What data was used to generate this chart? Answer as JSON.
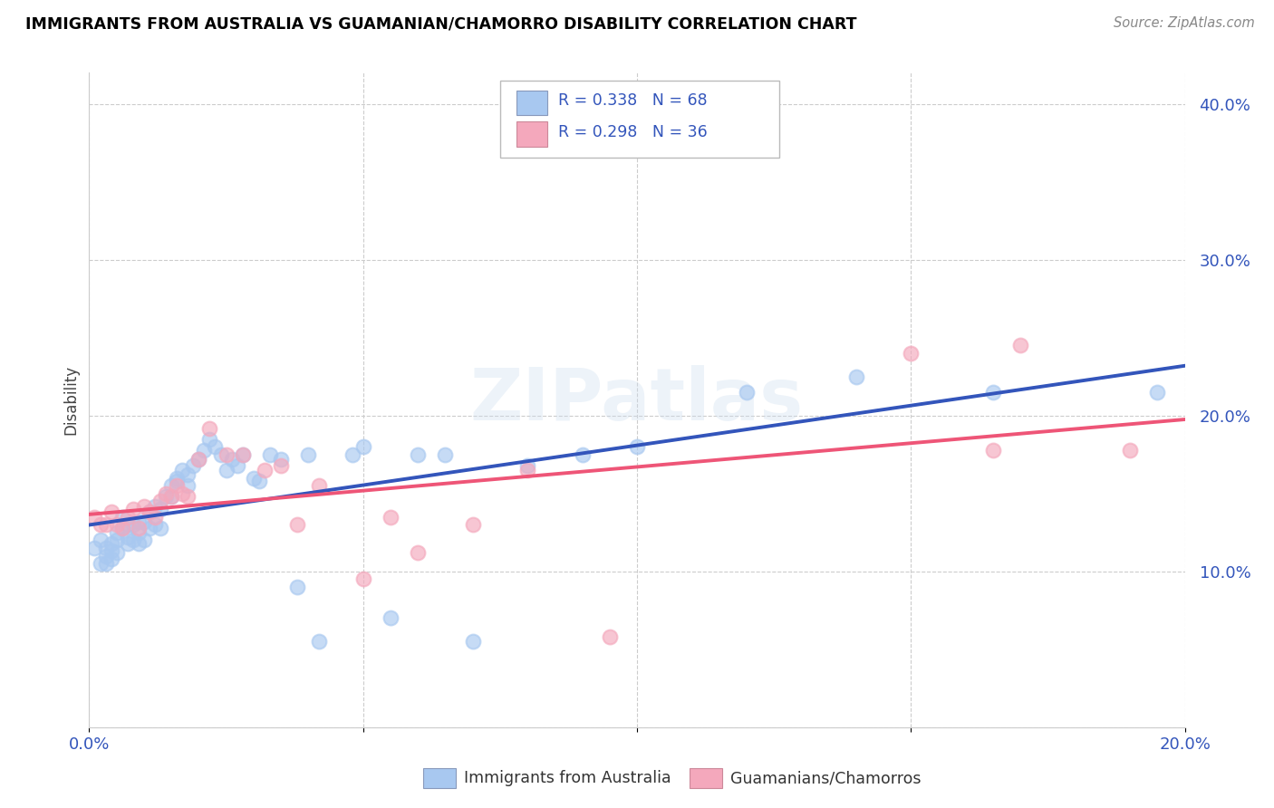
{
  "title": "IMMIGRANTS FROM AUSTRALIA VS GUAMANIAN/CHAMORRO DISABILITY CORRELATION CHART",
  "source": "Source: ZipAtlas.com",
  "ylabel": "Disability",
  "x_min": 0.0,
  "x_max": 0.2,
  "y_min": 0.0,
  "y_max": 0.42,
  "r_blue": 0.338,
  "n_blue": 68,
  "r_pink": 0.298,
  "n_pink": 36,
  "blue_color": "#A8C8F0",
  "pink_color": "#F4A8BC",
  "line_blue": "#3355BB",
  "line_pink": "#EE5577",
  "line_dashed_color": "#AAAAAA",
  "legend_text_color": "#3355BB",
  "tick_color": "#3355BB",
  "grid_color": "#CCCCCC",
  "blue_scatter_x": [
    0.001,
    0.002,
    0.002,
    0.003,
    0.003,
    0.003,
    0.004,
    0.004,
    0.004,
    0.005,
    0.005,
    0.005,
    0.006,
    0.006,
    0.007,
    0.007,
    0.007,
    0.008,
    0.008,
    0.009,
    0.009,
    0.009,
    0.01,
    0.01,
    0.011,
    0.011,
    0.012,
    0.012,
    0.013,
    0.013,
    0.014,
    0.015,
    0.015,
    0.016,
    0.016,
    0.017,
    0.018,
    0.018,
    0.019,
    0.02,
    0.021,
    0.022,
    0.023,
    0.024,
    0.025,
    0.026,
    0.027,
    0.028,
    0.03,
    0.031,
    0.033,
    0.035,
    0.038,
    0.04,
    0.042,
    0.048,
    0.05,
    0.055,
    0.06,
    0.065,
    0.07,
    0.08,
    0.09,
    0.1,
    0.12,
    0.14,
    0.165,
    0.195
  ],
  "blue_scatter_y": [
    0.115,
    0.12,
    0.105,
    0.115,
    0.11,
    0.105,
    0.118,
    0.113,
    0.108,
    0.125,
    0.12,
    0.112,
    0.128,
    0.135,
    0.13,
    0.122,
    0.118,
    0.13,
    0.12,
    0.132,
    0.125,
    0.118,
    0.132,
    0.12,
    0.138,
    0.128,
    0.142,
    0.13,
    0.14,
    0.128,
    0.148,
    0.155,
    0.148,
    0.16,
    0.158,
    0.165,
    0.162,
    0.155,
    0.168,
    0.172,
    0.178,
    0.185,
    0.18,
    0.175,
    0.165,
    0.172,
    0.168,
    0.175,
    0.16,
    0.158,
    0.175,
    0.172,
    0.09,
    0.175,
    0.055,
    0.175,
    0.18,
    0.07,
    0.175,
    0.175,
    0.055,
    0.168,
    0.175,
    0.18,
    0.215,
    0.225,
    0.215,
    0.215
  ],
  "pink_scatter_x": [
    0.001,
    0.002,
    0.003,
    0.004,
    0.005,
    0.006,
    0.007,
    0.008,
    0.009,
    0.01,
    0.011,
    0.012,
    0.013,
    0.014,
    0.015,
    0.016,
    0.017,
    0.018,
    0.02,
    0.022,
    0.025,
    0.028,
    0.032,
    0.035,
    0.038,
    0.042,
    0.05,
    0.055,
    0.06,
    0.07,
    0.08,
    0.095,
    0.15,
    0.165,
    0.17,
    0.19
  ],
  "pink_scatter_y": [
    0.135,
    0.13,
    0.13,
    0.138,
    0.13,
    0.128,
    0.135,
    0.14,
    0.128,
    0.142,
    0.138,
    0.135,
    0.145,
    0.15,
    0.148,
    0.155,
    0.15,
    0.148,
    0.172,
    0.192,
    0.175,
    0.175,
    0.165,
    0.168,
    0.13,
    0.155,
    0.095,
    0.135,
    0.112,
    0.13,
    0.165,
    0.058,
    0.24,
    0.178,
    0.245,
    0.178
  ]
}
